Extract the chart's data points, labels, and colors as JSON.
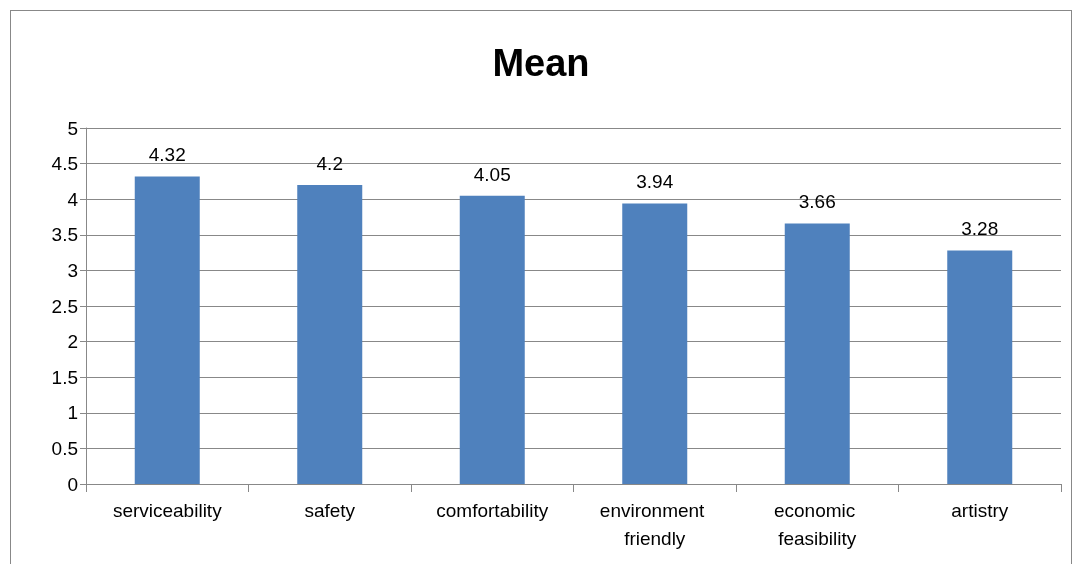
{
  "chart_data": {
    "type": "bar",
    "title": "Mean",
    "categories": [
      "serviceability",
      "safety",
      "comfortability",
      "environment friendly",
      "economic feasibility",
      "artistry"
    ],
    "values": [
      4.32,
      4.2,
      4.05,
      3.94,
      3.66,
      3.28
    ],
    "color": "#4f81bd",
    "ylim": [
      0,
      5
    ],
    "yticks": [
      0,
      0.5,
      1,
      1.5,
      2,
      2.5,
      3,
      3.5,
      4,
      4.5,
      5
    ],
    "grid": "y",
    "data_labels": true
  }
}
